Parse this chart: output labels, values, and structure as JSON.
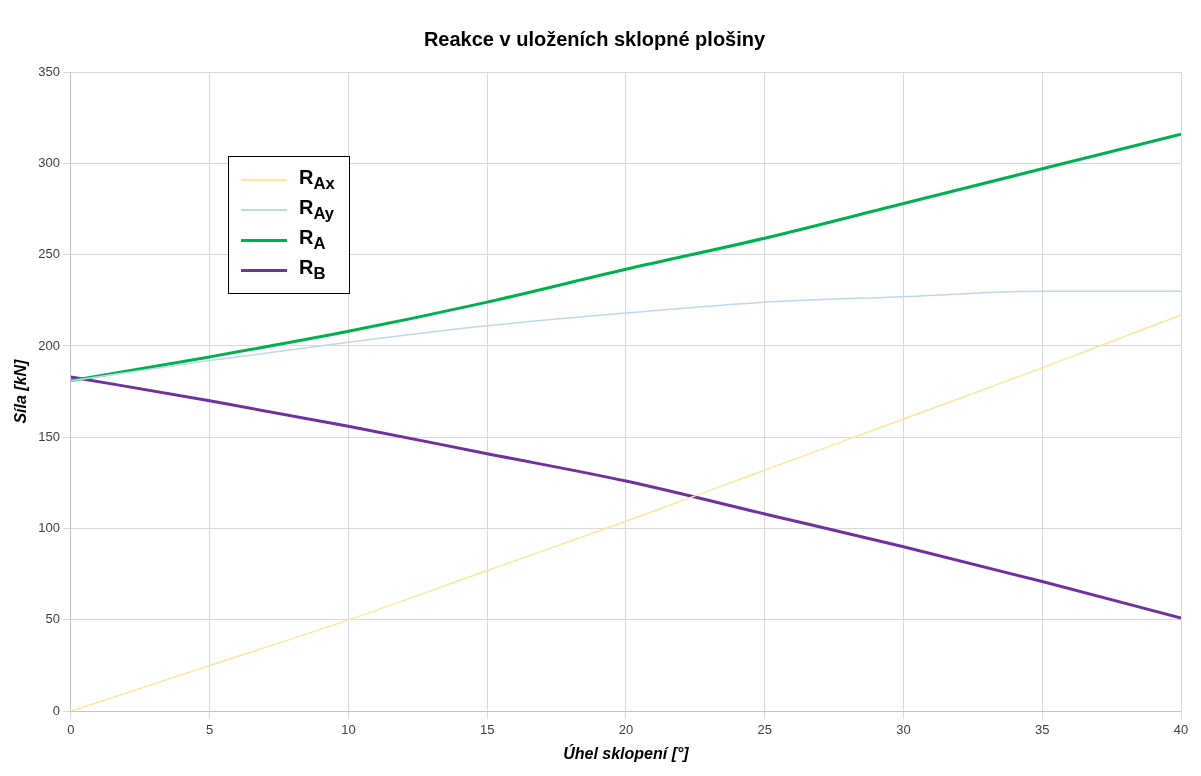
{
  "chart_data": {
    "type": "line",
    "title": "Reakce v uloženích sklopné plošiny",
    "xlabel": "Úhel sklopení [°]",
    "ylabel": "Síla [kN]",
    "x": [
      0,
      5,
      10,
      15,
      20,
      25,
      30,
      35,
      40
    ],
    "series": [
      {
        "name": "R$_{Ax}$",
        "color": "#ffe699",
        "values": [
          0,
          25,
          50,
          77,
          104,
          132,
          160,
          188,
          217
        ]
      },
      {
        "name": "R$_{Ay}$",
        "color": "#bdd7ee",
        "values": [
          181,
          192,
          202,
          211,
          218,
          224,
          227,
          230,
          230
        ]
      },
      {
        "name": "R$_{A}$",
        "color": "#00b050",
        "values": [
          181,
          194,
          208,
          224,
          242,
          259,
          278,
          297,
          316
        ]
      },
      {
        "name": "R$_{B}$",
        "color": "#7030a0",
        "values": [
          183,
          170,
          156,
          141,
          126,
          108,
          90,
          71,
          51
        ]
      }
    ],
    "xlim": [
      0,
      40
    ],
    "xticks": [
      0,
      5,
      10,
      15,
      20,
      25,
      30,
      35,
      40
    ],
    "ylim": [
      0,
      350
    ],
    "yticks": [
      0,
      50,
      100,
      150,
      200,
      250,
      300,
      350
    ],
    "grid": true,
    "legend": "top left",
    "marker": "none",
    "line_style": "solid"
  }
}
